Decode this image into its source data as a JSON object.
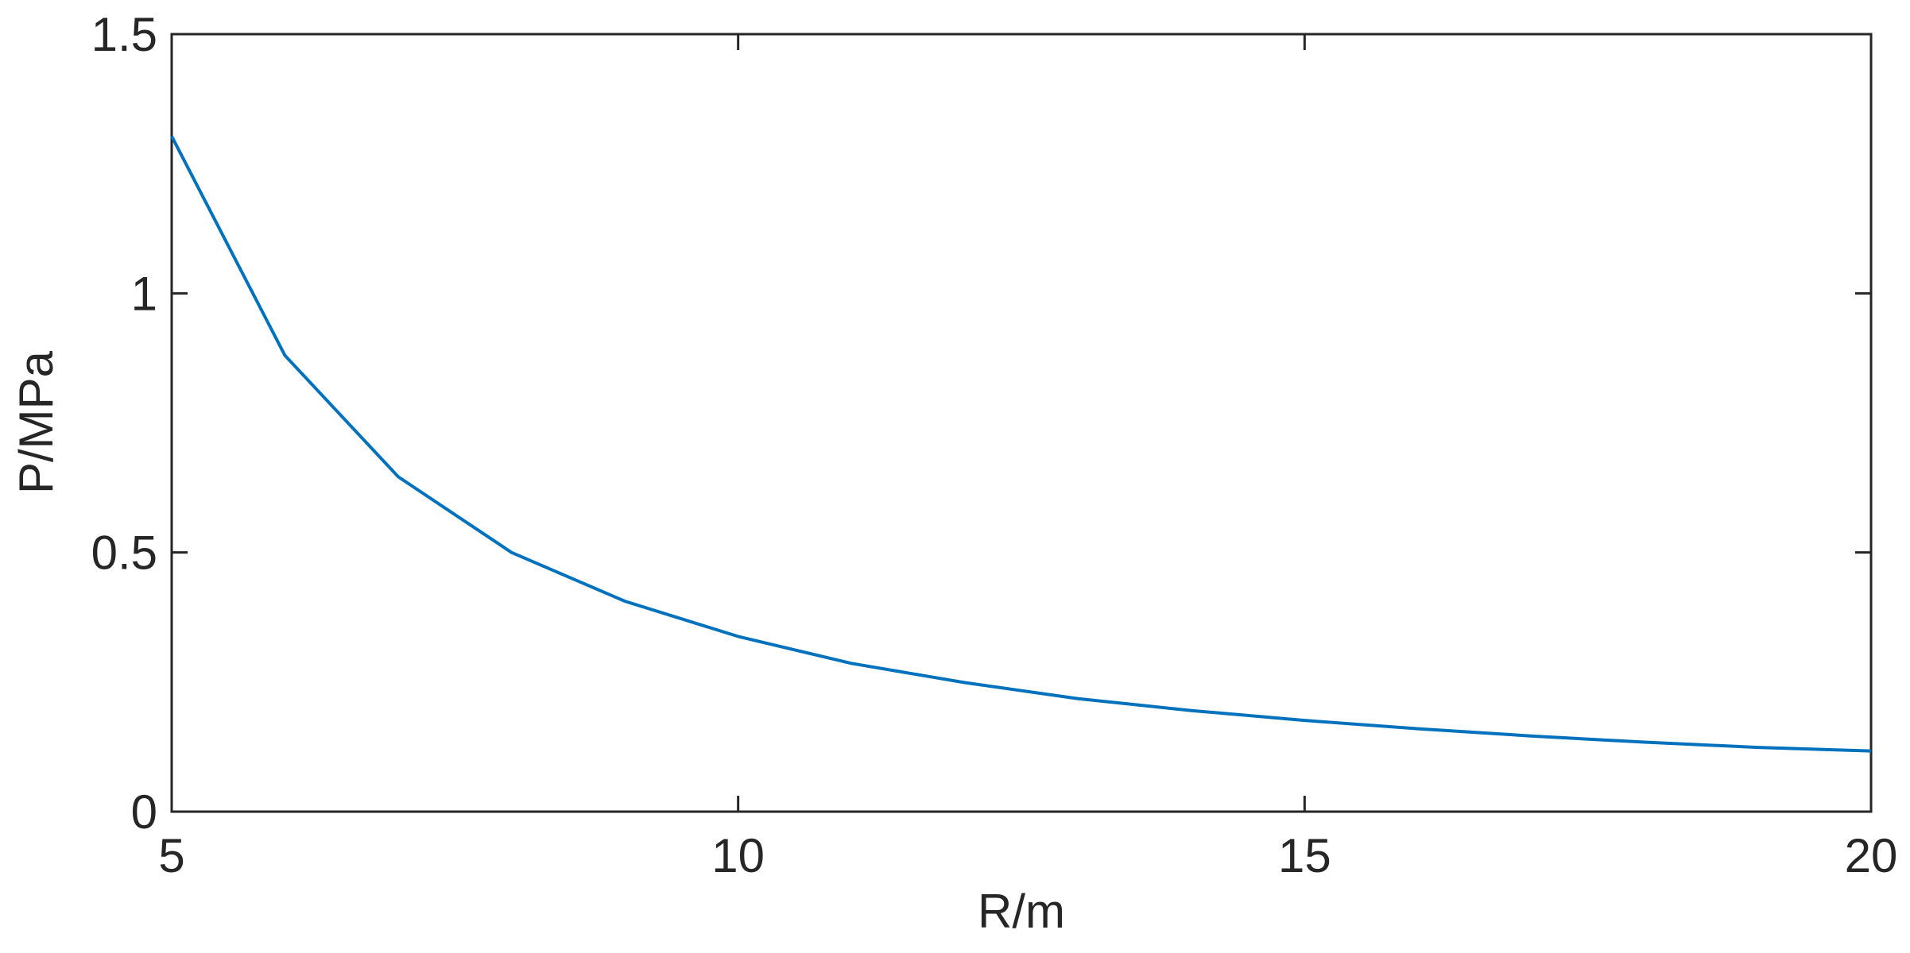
{
  "chart_data": {
    "type": "line",
    "x": [
      5,
      6,
      7,
      8,
      9,
      10,
      11,
      12,
      13,
      14,
      15,
      16,
      17,
      18,
      19,
      20
    ],
    "series": [
      {
        "color": "#0072bd",
        "values": [
          1.303,
          0.88,
          0.646,
          0.5,
          0.406,
          0.338,
          0.286,
          0.249,
          0.218,
          0.195,
          0.176,
          0.16,
          0.146,
          0.134,
          0.124,
          0.117
        ]
      }
    ],
    "xlim": [
      5,
      20
    ],
    "xticks": [
      5,
      10,
      15,
      20
    ],
    "ylim": [
      0,
      1.5
    ],
    "yticks": [
      0,
      0.5,
      1,
      1.5
    ],
    "xlabel": "R/m",
    "ylabel": "P/MPa"
  }
}
